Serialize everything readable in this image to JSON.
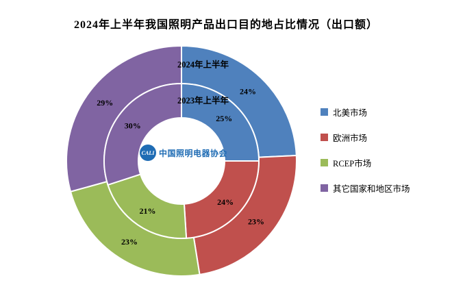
{
  "title": "2024年上半年我国照明产品出口目的地占比情况（出口额）",
  "chart_data": {
    "type": "donut",
    "title": "2024年上半年我国照明产品出口目的地占比情况（出口额）",
    "categories": [
      "北美市场",
      "欧洲市场",
      "RCEP市场",
      "其它国家和地区市场"
    ],
    "colors": [
      "#4f81bd",
      "#c0504d",
      "#9bbb59",
      "#8064a2"
    ],
    "rings": [
      {
        "name": "2024年上半年",
        "level": "outer",
        "values": [
          24,
          23,
          23,
          29
        ],
        "labels": [
          "24%",
          "23%",
          "23%",
          "29%"
        ]
      },
      {
        "name": "2023年上半年",
        "level": "inner",
        "values": [
          25,
          24,
          21,
          30
        ],
        "labels": [
          "25%",
          "24%",
          "21%",
          "30%"
        ]
      }
    ],
    "legend_position": "right",
    "start_angle": "top-clockwise",
    "center": {
      "logo_mark": "CALI",
      "logo_text": "中国照明电器协会",
      "logo_color": "#1f6cb4"
    }
  }
}
